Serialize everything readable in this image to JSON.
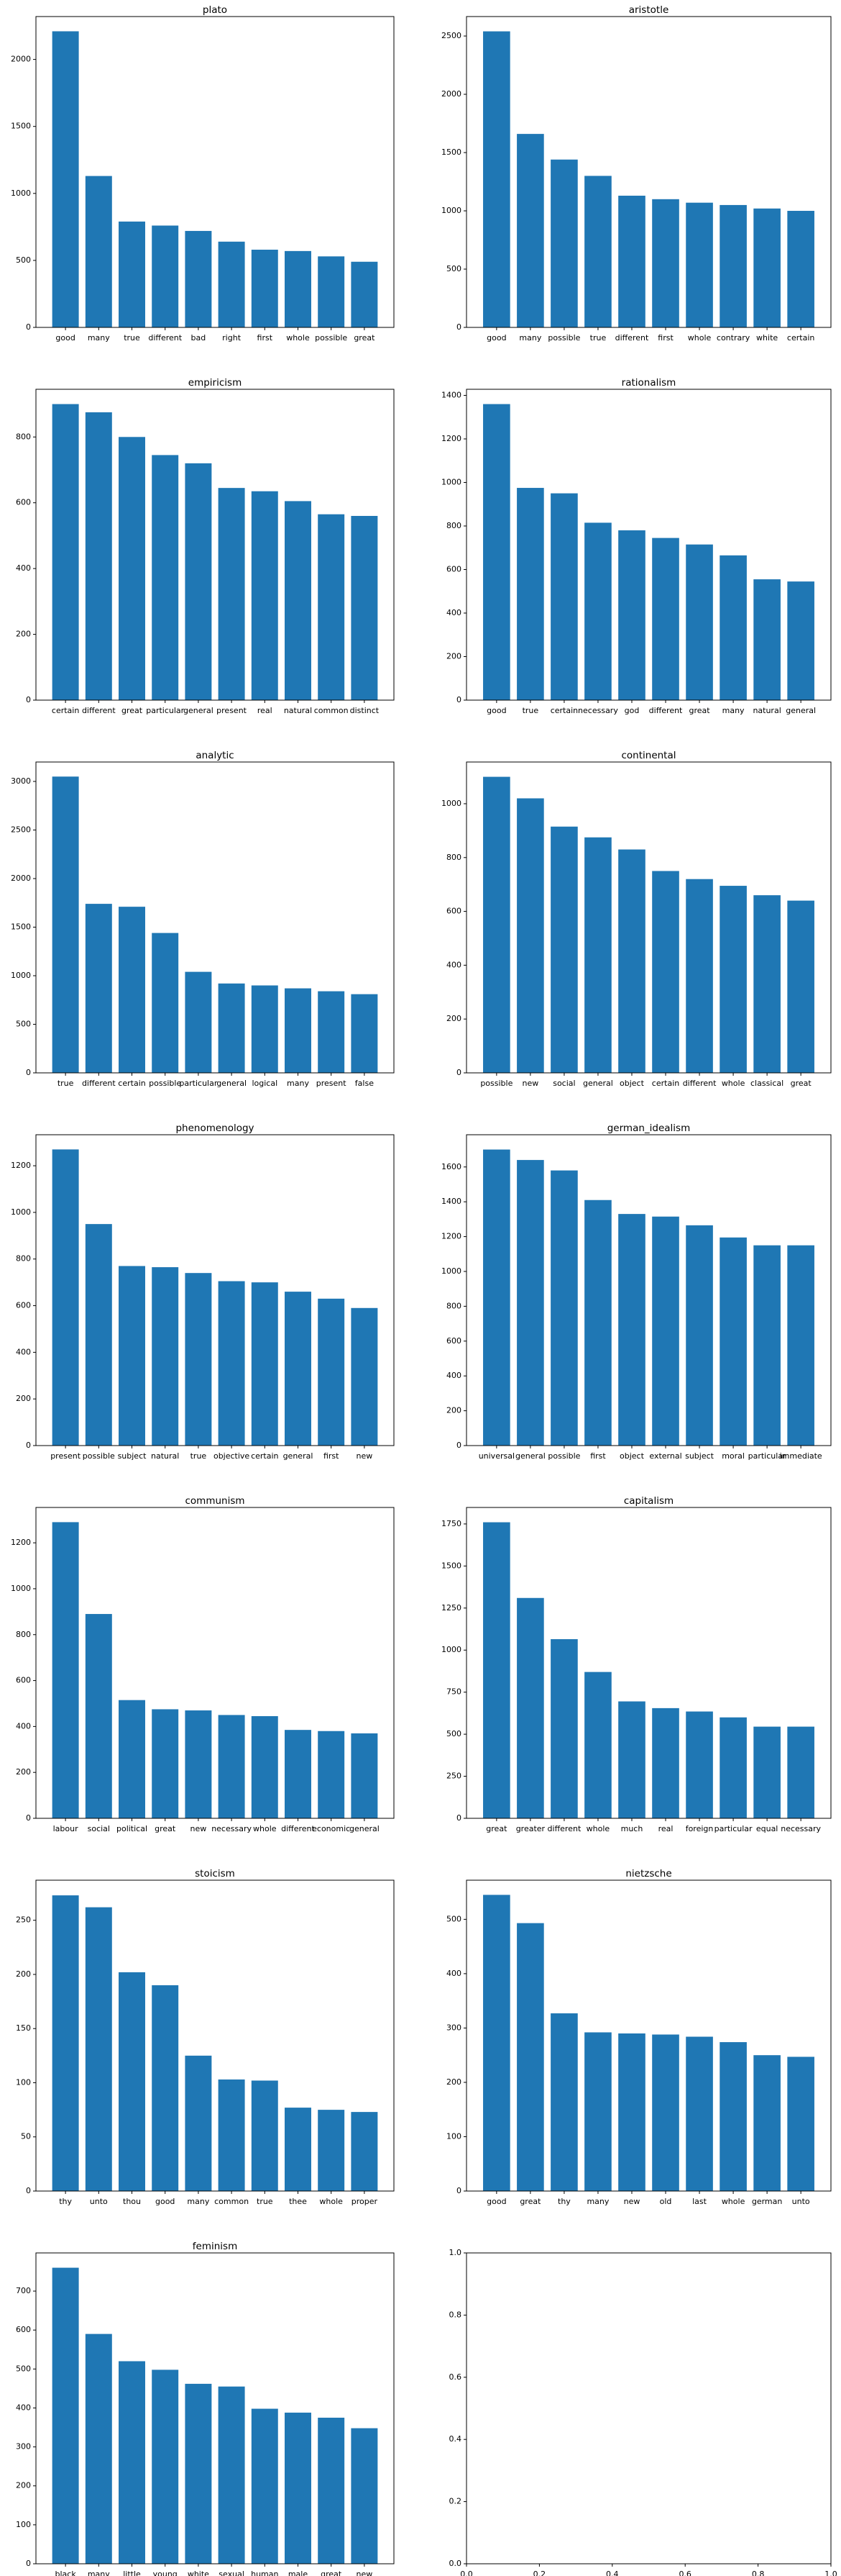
{
  "chart_data": [
    {
      "type": "bar",
      "title": "plato",
      "color": "#1f77b4",
      "categories": [
        "good",
        "many",
        "true",
        "different",
        "bad",
        "right",
        "first",
        "whole",
        "possible",
        "great"
      ],
      "values": [
        2210,
        1130,
        790,
        760,
        720,
        640,
        580,
        570,
        530,
        490
      ],
      "ylim": [
        0,
        2320
      ],
      "yticks": [
        0,
        500,
        1000,
        1500,
        2000
      ]
    },
    {
      "type": "bar",
      "title": "aristotle",
      "color": "#1f77b4",
      "categories": [
        "good",
        "many",
        "possible",
        "true",
        "different",
        "first",
        "whole",
        "contrary",
        "white",
        "certain"
      ],
      "values": [
        2540,
        1660,
        1440,
        1300,
        1130,
        1100,
        1070,
        1050,
        1020,
        1000
      ],
      "ylim": [
        0,
        2667
      ],
      "yticks": [
        0,
        500,
        1000,
        1500,
        2000,
        2500
      ]
    },
    {
      "type": "bar",
      "title": "empiricism",
      "color": "#1f77b4",
      "categories": [
        "certain",
        "different",
        "great",
        "particular",
        "general",
        "present",
        "real",
        "natural",
        "common",
        "distinct"
      ],
      "values": [
        900,
        875,
        800,
        745,
        720,
        645,
        635,
        605,
        565,
        560
      ],
      "ylim": [
        0,
        945
      ],
      "yticks": [
        0,
        200,
        400,
        600,
        800
      ]
    },
    {
      "type": "bar",
      "title": "rationalism",
      "color": "#1f77b4",
      "categories": [
        "good",
        "true",
        "certain",
        "necessary",
        "god",
        "different",
        "great",
        "many",
        "natural",
        "general"
      ],
      "values": [
        1360,
        975,
        950,
        815,
        780,
        745,
        715,
        665,
        555,
        545
      ],
      "ylim": [
        0,
        1428
      ],
      "yticks": [
        0,
        200,
        400,
        600,
        800,
        1000,
        1200,
        1400
      ]
    },
    {
      "type": "bar",
      "title": "analytic",
      "color": "#1f77b4",
      "categories": [
        "true",
        "different",
        "certain",
        "possible",
        "particular",
        "general",
        "logical",
        "many",
        "present",
        "false"
      ],
      "values": [
        3050,
        1740,
        1710,
        1440,
        1040,
        920,
        900,
        870,
        840,
        810
      ],
      "ylim": [
        0,
        3200
      ],
      "yticks": [
        0,
        500,
        1000,
        1500,
        2000,
        2500,
        3000
      ]
    },
    {
      "type": "bar",
      "title": "continental",
      "color": "#1f77b4",
      "categories": [
        "possible",
        "new",
        "social",
        "general",
        "object",
        "certain",
        "different",
        "whole",
        "classical",
        "great"
      ],
      "values": [
        1100,
        1020,
        915,
        875,
        830,
        750,
        720,
        695,
        660,
        640
      ],
      "ylim": [
        0,
        1155
      ],
      "yticks": [
        0,
        200,
        400,
        600,
        800,
        1000
      ]
    },
    {
      "type": "bar",
      "title": "phenomenology",
      "color": "#1f77b4",
      "categories": [
        "present",
        "possible",
        "subject",
        "natural",
        "true",
        "objective",
        "certain",
        "general",
        "first",
        "new"
      ],
      "values": [
        1270,
        950,
        770,
        765,
        740,
        705,
        700,
        660,
        630,
        590
      ],
      "ylim": [
        0,
        1333
      ],
      "yticks": [
        0,
        200,
        400,
        600,
        800,
        1000,
        1200
      ]
    },
    {
      "type": "bar",
      "title": "german_idealism",
      "color": "#1f77b4",
      "categories": [
        "universal",
        "general",
        "possible",
        "first",
        "object",
        "external",
        "subject",
        "moral",
        "particular",
        "immediate"
      ],
      "values": [
        1700,
        1640,
        1580,
        1410,
        1330,
        1315,
        1265,
        1195,
        1150,
        1150
      ],
      "ylim": [
        0,
        1785
      ],
      "yticks": [
        0,
        200,
        400,
        600,
        800,
        1000,
        1200,
        1400,
        1600
      ]
    },
    {
      "type": "bar",
      "title": "communism",
      "color": "#1f77b4",
      "categories": [
        "labour",
        "social",
        "political",
        "great",
        "new",
        "necessary",
        "whole",
        "different",
        "economic",
        "general"
      ],
      "values": [
        1290,
        890,
        515,
        475,
        470,
        450,
        445,
        385,
        380,
        370
      ],
      "ylim": [
        0,
        1354
      ],
      "yticks": [
        0,
        200,
        400,
        600,
        800,
        1000,
        1200
      ]
    },
    {
      "type": "bar",
      "title": "capitalism",
      "color": "#1f77b4",
      "categories": [
        "great",
        "greater",
        "different",
        "whole",
        "much",
        "real",
        "foreign",
        "particular",
        "equal",
        "necessary"
      ],
      "values": [
        1760,
        1310,
        1065,
        870,
        695,
        655,
        635,
        600,
        545,
        545
      ],
      "ylim": [
        0,
        1848
      ],
      "yticks": [
        0,
        250,
        500,
        750,
        1000,
        1250,
        1500,
        1750
      ]
    },
    {
      "type": "bar",
      "title": "stoicism",
      "color": "#1f77b4",
      "categories": [
        "thy",
        "unto",
        "thou",
        "good",
        "many",
        "common",
        "true",
        "thee",
        "whole",
        "proper"
      ],
      "values": [
        273,
        262,
        202,
        190,
        125,
        103,
        102,
        77,
        75,
        73
      ],
      "ylim": [
        0,
        287
      ],
      "yticks": [
        0,
        50,
        100,
        150,
        200,
        250
      ]
    },
    {
      "type": "bar",
      "title": "nietzsche",
      "color": "#1f77b4",
      "categories": [
        "good",
        "great",
        "thy",
        "many",
        "new",
        "old",
        "last",
        "whole",
        "german",
        "unto"
      ],
      "values": [
        545,
        493,
        327,
        292,
        290,
        288,
        284,
        274,
        250,
        247
      ],
      "ylim": [
        0,
        572
      ],
      "yticks": [
        0,
        100,
        200,
        300,
        400,
        500
      ]
    },
    {
      "type": "bar",
      "title": "feminism",
      "color": "#1f77b4",
      "categories": [
        "black",
        "many",
        "little",
        "young",
        "white",
        "sexual",
        "human",
        "male",
        "great",
        "new"
      ],
      "values": [
        760,
        590,
        520,
        498,
        462,
        455,
        398,
        388,
        375,
        348
      ],
      "ylim": [
        0,
        798
      ],
      "yticks": [
        0,
        100,
        200,
        300,
        400,
        500,
        600,
        700
      ]
    },
    {
      "type": "empty",
      "xlim": [
        0,
        1
      ],
      "ylim": [
        0,
        1
      ],
      "xticks": [
        {
          "value": 0,
          "label": "0.0"
        },
        0.2,
        0.4,
        0.6,
        0.8,
        {
          "value": 1,
          "label": "1.0"
        }
      ],
      "yticks": [
        {
          "value": 0,
          "label": "0.0"
        },
        0.2,
        0.4,
        0.6,
        0.8,
        {
          "value": 1,
          "label": "1.0"
        }
      ]
    }
  ]
}
